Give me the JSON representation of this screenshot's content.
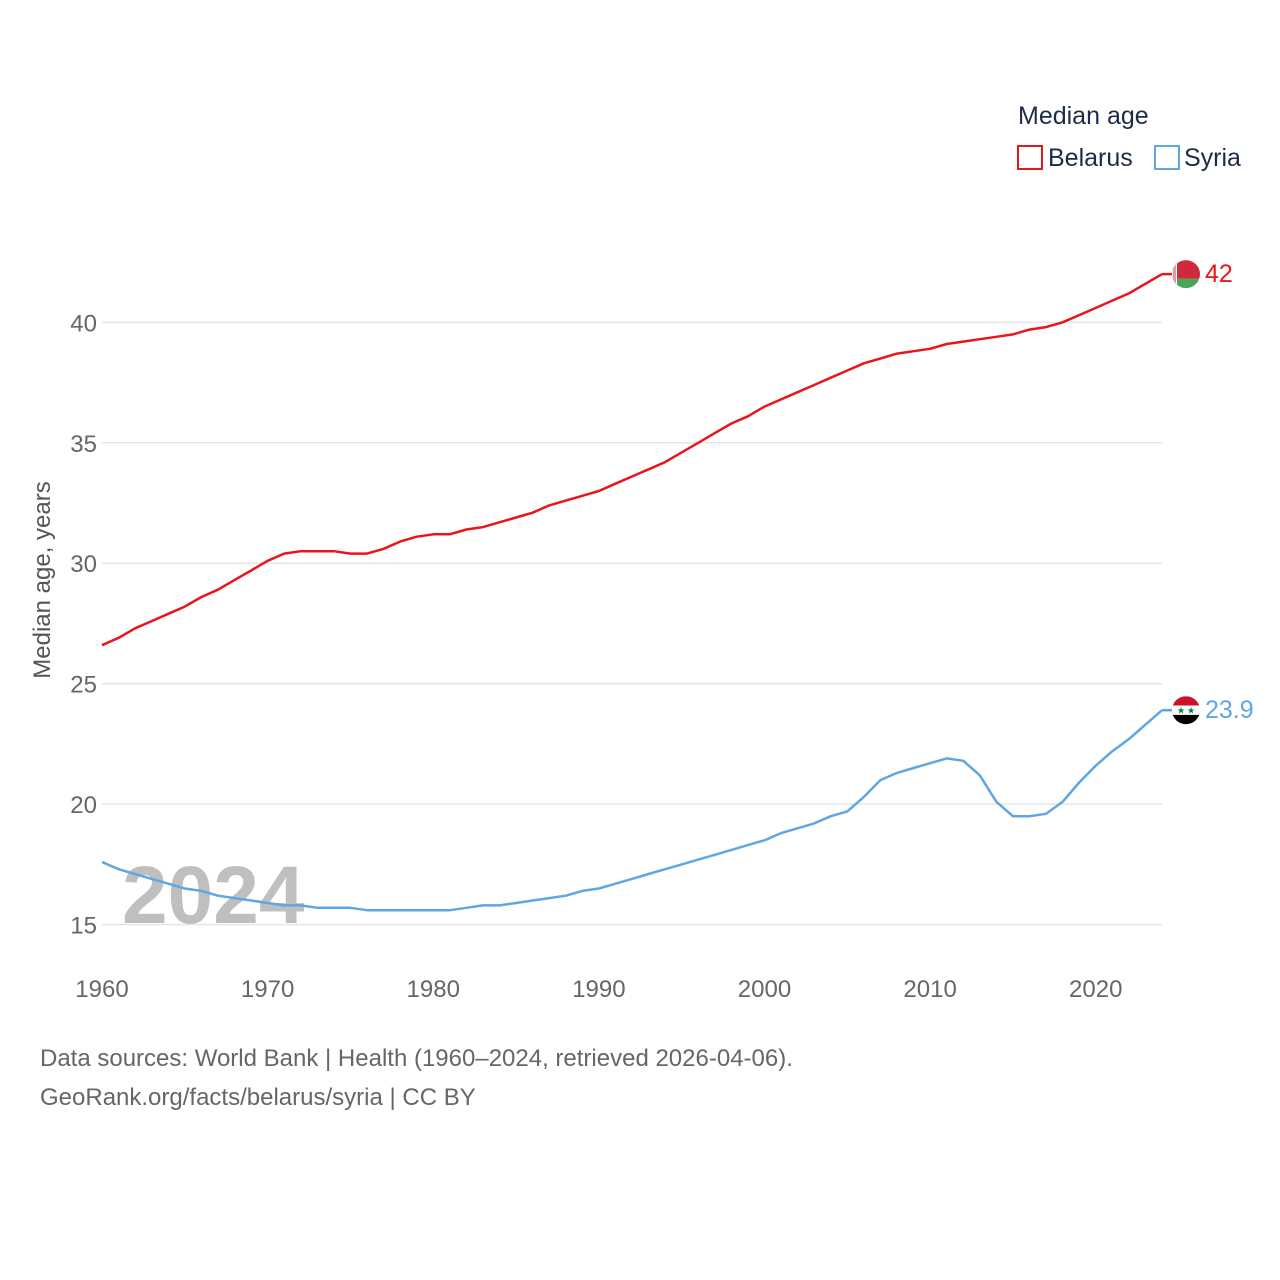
{
  "chart_data": {
    "type": "line",
    "title": "",
    "ylabel": "Median age, years",
    "xlabel": "",
    "xlim": [
      1960,
      2024
    ],
    "ylim": [
      13.2,
      43.5
    ],
    "x_ticks": [
      1960,
      1970,
      1980,
      1990,
      2000,
      2010,
      2020
    ],
    "y_ticks": [
      15,
      20,
      25,
      30,
      35,
      40
    ],
    "grid": true,
    "legend": {
      "title": "Median age",
      "position": "top-right"
    },
    "watermark_year": "2024",
    "x": [
      1960,
      1961,
      1962,
      1963,
      1964,
      1965,
      1966,
      1967,
      1968,
      1969,
      1970,
      1971,
      1972,
      1973,
      1974,
      1975,
      1976,
      1977,
      1978,
      1979,
      1980,
      1981,
      1982,
      1983,
      1984,
      1985,
      1986,
      1987,
      1988,
      1989,
      1990,
      1991,
      1992,
      1993,
      1994,
      1995,
      1996,
      1997,
      1998,
      1999,
      2000,
      2001,
      2002,
      2003,
      2004,
      2005,
      2006,
      2007,
      2008,
      2009,
      2010,
      2011,
      2012,
      2013,
      2014,
      2015,
      2016,
      2017,
      2018,
      2019,
      2020,
      2021,
      2022,
      2023,
      2024
    ],
    "series": [
      {
        "name": "Belarus",
        "color": "#e8161b",
        "end_label": "42",
        "flag": "belarus-flag-icon",
        "values": [
          26.6,
          26.9,
          27.3,
          27.6,
          27.9,
          28.2,
          28.6,
          28.9,
          29.3,
          29.7,
          30.1,
          30.4,
          30.5,
          30.5,
          30.5,
          30.4,
          30.4,
          30.6,
          30.9,
          31.1,
          31.2,
          31.2,
          31.4,
          31.5,
          31.7,
          31.9,
          32.1,
          32.4,
          32.6,
          32.8,
          33.0,
          33.3,
          33.6,
          33.9,
          34.2,
          34.6,
          35.0,
          35.4,
          35.8,
          36.1,
          36.5,
          36.8,
          37.1,
          37.4,
          37.7,
          38.0,
          38.3,
          38.5,
          38.7,
          38.8,
          38.9,
          39.1,
          39.2,
          39.3,
          39.4,
          39.5,
          39.7,
          39.8,
          40.0,
          40.3,
          40.6,
          40.9,
          41.2,
          41.6,
          42.0
        ]
      },
      {
        "name": "Syria",
        "color": "#5ea6e4",
        "end_label": "23.9",
        "flag": "syria-flag-icon",
        "values": [
          17.6,
          17.3,
          17.1,
          16.9,
          16.7,
          16.5,
          16.4,
          16.2,
          16.1,
          16.0,
          15.9,
          15.8,
          15.8,
          15.7,
          15.7,
          15.7,
          15.6,
          15.6,
          15.6,
          15.6,
          15.6,
          15.6,
          15.7,
          15.8,
          15.8,
          15.9,
          16.0,
          16.1,
          16.2,
          16.4,
          16.5,
          16.7,
          16.9,
          17.1,
          17.3,
          17.5,
          17.7,
          17.9,
          18.1,
          18.3,
          18.5,
          18.8,
          19.0,
          19.2,
          19.5,
          19.7,
          20.3,
          21.0,
          21.3,
          21.5,
          21.7,
          21.9,
          21.8,
          21.2,
          20.1,
          19.5,
          19.5,
          19.6,
          20.1,
          20.9,
          21.6,
          22.2,
          22.7,
          23.3,
          23.9
        ]
      }
    ]
  },
  "footer": {
    "sources": "Data sources: World Bank | Health (1960–2024, retrieved 2026-04-06).",
    "credit": "GeoRank.org/facts/belarus/syria | CC BY"
  }
}
